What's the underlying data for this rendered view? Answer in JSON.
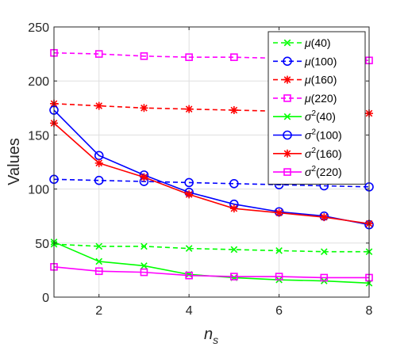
{
  "chart_data": {
    "type": "line",
    "title": "",
    "xlabel": {
      "base": "n",
      "sub": "s"
    },
    "ylabel": "Values",
    "x": [
      1,
      2,
      3,
      4,
      5,
      6,
      7,
      8
    ],
    "xlim": [
      1,
      8
    ],
    "ylim": [
      0,
      250
    ],
    "xticks": [
      2,
      4,
      6,
      8
    ],
    "yticks": [
      0,
      50,
      100,
      150,
      200,
      250
    ],
    "grid": true,
    "legend_position": "top-right",
    "series": [
      {
        "name": "μ(40)",
        "label_prefix": "μ",
        "label_suffix": "(40)",
        "sup": "",
        "color": "#00ff00",
        "dash": true,
        "marker": "x",
        "values": [
          49,
          47,
          47,
          45,
          44,
          43,
          42,
          42
        ]
      },
      {
        "name": "μ(100)",
        "label_prefix": "μ",
        "label_suffix": "(100)",
        "sup": "",
        "color": "#0000ff",
        "dash": true,
        "marker": "circle",
        "values": [
          109,
          108,
          107,
          106,
          105,
          104,
          103,
          102
        ]
      },
      {
        "name": "μ(160)",
        "label_prefix": "μ",
        "label_suffix": "(160)",
        "sup": "",
        "color": "#ff0000",
        "dash": true,
        "marker": "asterisk",
        "values": [
          179,
          177,
          175,
          174,
          173,
          172,
          171,
          170
        ]
      },
      {
        "name": "μ(220)",
        "label_prefix": "μ",
        "label_suffix": "(220)",
        "sup": "",
        "color": "#ff00ff",
        "dash": true,
        "marker": "square",
        "values": [
          226,
          225,
          223,
          222,
          222,
          221,
          220,
          219
        ]
      },
      {
        "name": "σ2(40)",
        "label_prefix": "σ",
        "label_suffix": "(40)",
        "sup": "2",
        "color": "#00ff00",
        "dash": false,
        "marker": "x",
        "values": [
          51,
          33,
          29,
          21,
          18,
          16,
          15,
          13
        ]
      },
      {
        "name": "σ2(100)",
        "label_prefix": "σ",
        "label_suffix": "(100)",
        "sup": "2",
        "color": "#0000ff",
        "dash": false,
        "marker": "circle",
        "values": [
          173,
          131,
          113,
          97,
          86,
          79,
          75,
          67
        ]
      },
      {
        "name": "σ2(160)",
        "label_prefix": "σ",
        "label_suffix": "(160)",
        "sup": "2",
        "color": "#ff0000",
        "dash": false,
        "marker": "asterisk",
        "values": [
          161,
          124,
          111,
          95,
          82,
          78,
          74,
          68
        ]
      },
      {
        "name": "σ2(220)",
        "label_prefix": "σ",
        "label_suffix": "(220)",
        "sup": "2",
        "color": "#ff00ff",
        "dash": false,
        "marker": "square",
        "values": [
          28,
          24,
          23,
          20,
          19,
          19,
          18,
          18
        ]
      }
    ]
  }
}
